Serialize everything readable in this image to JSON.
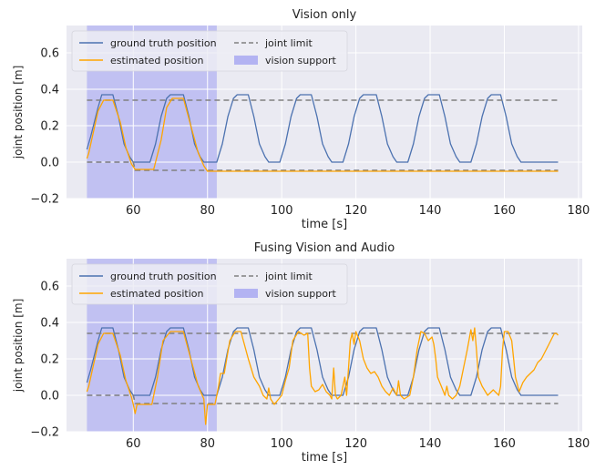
{
  "colors": {
    "ground_truth": "#4c72b0",
    "estimated": "#ffa500",
    "joint_limit": "#808080",
    "vision_support": "#b3b3f2",
    "axes_bg": "#eaeaf2",
    "grid": "#ffffff"
  },
  "chart_data": [
    {
      "type": "line",
      "title": "Vision only",
      "xlabel": "time [s]",
      "ylabel": "joint position [m]",
      "xlim": [
        42,
        181
      ],
      "ylim": [
        -0.2,
        0.75
      ],
      "xticks": [
        "60",
        "80",
        "100",
        "120",
        "140",
        "160",
        "180"
      ],
      "yticks": [
        "−0.2",
        "0.0",
        "0.2",
        "0.4",
        "0.6"
      ],
      "grid": true,
      "legend": "top-left",
      "legend_entries": [
        "ground truth position",
        "estimated position",
        "joint limit",
        "vision support"
      ],
      "vision_support": [
        47.5,
        82.5
      ],
      "series": [
        {
          "name": "ground truth position",
          "x": [
            47.5,
            48.5,
            50.5,
            51.5,
            54.5,
            56.0,
            57.5,
            59.0,
            60.0,
            64.5,
            66.0,
            67.5,
            69.0,
            70.0,
            73.5,
            75.0,
            76.5,
            78.0,
            79.0,
            82.5,
            84.0,
            85.5,
            87.0,
            88.0,
            91.0,
            92.5,
            94.0,
            95.5,
            96.5,
            99.5,
            101.0,
            102.5,
            104.0,
            105.0,
            108.0,
            109.5,
            111.0,
            112.5,
            113.5,
            116.5,
            118.0,
            119.5,
            121.0,
            122.0,
            125.5,
            127.0,
            128.5,
            130.0,
            131.0,
            134.0,
            135.5,
            137.0,
            138.5,
            139.5,
            142.5,
            144.0,
            145.5,
            147.0,
            148.0,
            151.0,
            152.5,
            154.0,
            155.5,
            156.5,
            159.0,
            160.5,
            162.0,
            163.5,
            164.5,
            174.5
          ],
          "y": [
            0.07,
            0.14,
            0.3,
            0.37,
            0.37,
            0.25,
            0.1,
            0.03,
            0.0,
            0.0,
            0.1,
            0.25,
            0.35,
            0.37,
            0.37,
            0.25,
            0.1,
            0.03,
            0.0,
            0.0,
            0.1,
            0.25,
            0.35,
            0.37,
            0.37,
            0.25,
            0.1,
            0.03,
            0.0,
            0.0,
            0.1,
            0.25,
            0.35,
            0.37,
            0.37,
            0.25,
            0.1,
            0.03,
            0.0,
            0.0,
            0.1,
            0.25,
            0.35,
            0.37,
            0.37,
            0.25,
            0.1,
            0.03,
            0.0,
            0.0,
            0.1,
            0.25,
            0.35,
            0.37,
            0.37,
            0.25,
            0.1,
            0.03,
            0.0,
            0.0,
            0.1,
            0.25,
            0.35,
            0.37,
            0.37,
            0.25,
            0.1,
            0.03,
            0.0,
            0.0
          ]
        },
        {
          "name": "estimated position",
          "x": [
            47.5,
            48.0,
            50.5,
            52.0,
            54.5,
            56.5,
            58.0,
            59.5,
            60.5,
            65.5,
            67.5,
            69.0,
            70.5,
            73.5,
            75.5,
            77.5,
            79.0,
            80.0,
            174.5
          ],
          "y": [
            0.02,
            0.05,
            0.28,
            0.34,
            0.34,
            0.22,
            0.08,
            -0.01,
            -0.04,
            -0.04,
            0.12,
            0.3,
            0.35,
            0.35,
            0.2,
            0.05,
            -0.02,
            -0.05,
            -0.05
          ]
        },
        {
          "name": "joint limit",
          "x": [
            47.5,
            174.5
          ],
          "y": [
            0.34,
            0.34
          ]
        },
        {
          "name": "joint limit",
          "x": [
            47.5,
            60.0,
            60.5,
            174.5
          ],
          "y": [
            0.0,
            0.0,
            -0.045,
            -0.045
          ]
        }
      ]
    },
    {
      "type": "line",
      "title": "Fusing Vision and Audio",
      "xlabel": "time [s]",
      "ylabel": "joint position [m]",
      "xlim": [
        42,
        181
      ],
      "ylim": [
        -0.2,
        0.75
      ],
      "xticks": [
        "60",
        "80",
        "100",
        "120",
        "140",
        "160",
        "180"
      ],
      "yticks": [
        "−0.2",
        "0.0",
        "0.2",
        "0.4",
        "0.6"
      ],
      "grid": true,
      "legend": "top-left",
      "legend_entries": [
        "ground truth position",
        "estimated position",
        "joint limit",
        "vision support"
      ],
      "vision_support": [
        47.5,
        82.5
      ],
      "series": [
        {
          "name": "ground truth position",
          "x": [
            47.5,
            48.5,
            50.5,
            51.5,
            54.5,
            56.0,
            57.5,
            59.0,
            60.0,
            64.5,
            66.0,
            67.5,
            69.0,
            70.0,
            73.5,
            75.0,
            76.5,
            78.0,
            79.0,
            82.5,
            84.0,
            85.5,
            87.0,
            88.0,
            91.0,
            92.5,
            94.0,
            95.5,
            96.5,
            99.5,
            101.0,
            102.5,
            104.0,
            105.0,
            108.0,
            109.5,
            111.0,
            112.5,
            113.5,
            116.5,
            118.0,
            119.5,
            121.0,
            122.0,
            125.5,
            127.0,
            128.5,
            130.0,
            131.0,
            134.0,
            135.5,
            137.0,
            138.5,
            139.5,
            142.5,
            144.0,
            145.5,
            147.0,
            148.0,
            151.0,
            152.5,
            154.0,
            155.5,
            156.5,
            159.0,
            160.5,
            162.0,
            163.5,
            164.5,
            174.5
          ],
          "y": [
            0.07,
            0.14,
            0.3,
            0.37,
            0.37,
            0.25,
            0.1,
            0.03,
            0.0,
            0.0,
            0.1,
            0.25,
            0.35,
            0.37,
            0.37,
            0.25,
            0.1,
            0.03,
            0.0,
            0.0,
            0.1,
            0.25,
            0.35,
            0.37,
            0.37,
            0.25,
            0.1,
            0.03,
            0.0,
            0.0,
            0.1,
            0.25,
            0.35,
            0.37,
            0.37,
            0.25,
            0.1,
            0.03,
            0.0,
            0.0,
            0.1,
            0.25,
            0.35,
            0.37,
            0.37,
            0.25,
            0.1,
            0.03,
            0.0,
            0.0,
            0.1,
            0.25,
            0.35,
            0.37,
            0.37,
            0.25,
            0.1,
            0.03,
            0.0,
            0.0,
            0.1,
            0.25,
            0.35,
            0.37,
            0.37,
            0.25,
            0.1,
            0.03,
            0.0,
            0.0
          ]
        },
        {
          "name": "estimated position",
          "x": [
            47.5,
            48.0,
            50.5,
            52.0,
            54.5,
            56.5,
            58.0,
            59.5,
            60.0,
            60.5,
            61.0,
            65.0,
            66.5,
            68.0,
            70.0,
            73.5,
            75.5,
            77.5,
            79.0,
            79.5,
            80.0,
            80.5,
            82.0,
            83.0,
            83.5,
            84.5,
            86.0,
            87.5,
            89.0,
            91.0,
            92.5,
            94.0,
            95.0,
            96.0,
            96.5,
            97.0,
            98.0,
            100.0,
            101.0,
            102.0,
            103.0,
            104.5,
            106.0,
            107.0,
            107.5,
            108.0,
            109.0,
            110.0,
            111.0,
            112.0,
            113.0,
            113.5,
            114.0,
            114.5,
            115.0,
            116.0,
            117.0,
            117.5,
            118.0,
            118.5,
            119.0,
            119.5,
            120.0,
            121.0,
            122.0,
            123.0,
            124.0,
            125.0,
            126.0,
            127.0,
            128.0,
            129.0,
            130.0,
            131.0,
            131.5,
            132.0,
            133.0,
            134.5,
            135.5,
            136.5,
            137.5,
            138.5,
            139.5,
            140.5,
            141.0,
            141.5,
            142.0,
            143.0,
            144.0,
            144.5,
            145.0,
            146.0,
            147.0,
            148.0,
            149.0,
            150.0,
            151.0,
            151.5,
            152.0,
            152.5,
            153.0,
            154.0,
            155.5,
            157.0,
            158.5,
            159.0,
            159.5,
            160.0,
            161.0,
            162.0,
            162.5,
            163.0,
            164.0,
            165.0,
            166.0,
            167.0,
            168.0,
            169.0,
            170.0,
            171.0,
            172.0,
            173.0,
            173.5,
            174.0,
            174.5
          ],
          "y": [
            0.02,
            0.05,
            0.28,
            0.34,
            0.34,
            0.22,
            0.08,
            -0.01,
            -0.05,
            -0.1,
            -0.05,
            -0.05,
            0.1,
            0.3,
            0.35,
            0.35,
            0.2,
            0.05,
            -0.02,
            -0.16,
            -0.05,
            -0.05,
            -0.05,
            0.05,
            0.12,
            0.12,
            0.3,
            0.35,
            0.35,
            0.2,
            0.1,
            0.05,
            0.0,
            -0.02,
            0.04,
            -0.02,
            -0.05,
            0.0,
            0.08,
            0.15,
            0.3,
            0.35,
            0.33,
            0.34,
            0.15,
            0.05,
            0.02,
            0.03,
            0.06,
            0.02,
            0.0,
            -0.02,
            0.15,
            0.0,
            -0.02,
            0.0,
            0.1,
            0.0,
            0.15,
            0.3,
            0.34,
            0.28,
            0.35,
            0.3,
            0.2,
            0.15,
            0.12,
            0.13,
            0.1,
            0.05,
            0.02,
            0.0,
            0.04,
            0.0,
            0.08,
            0.0,
            -0.02,
            0.0,
            0.1,
            0.25,
            0.35,
            0.34,
            0.3,
            0.32,
            0.28,
            0.2,
            0.1,
            0.05,
            0.0,
            0.05,
            0.0,
            -0.02,
            0.0,
            0.05,
            0.15,
            0.25,
            0.36,
            0.3,
            0.37,
            0.25,
            0.1,
            0.05,
            0.0,
            0.03,
            0.0,
            0.05,
            0.25,
            0.35,
            0.35,
            0.3,
            0.2,
            0.1,
            0.02,
            0.07,
            0.1,
            0.12,
            0.14,
            0.18,
            0.2,
            0.24,
            0.28,
            0.32,
            0.34,
            0.34,
            0.33
          ]
        },
        {
          "name": "joint limit",
          "x": [
            47.5,
            174.5
          ],
          "y": [
            0.34,
            0.34
          ]
        },
        {
          "name": "joint limit",
          "x": [
            47.5,
            60.0,
            60.5,
            174.5
          ],
          "y": [
            0.0,
            0.0,
            -0.045,
            -0.045
          ]
        }
      ]
    }
  ]
}
